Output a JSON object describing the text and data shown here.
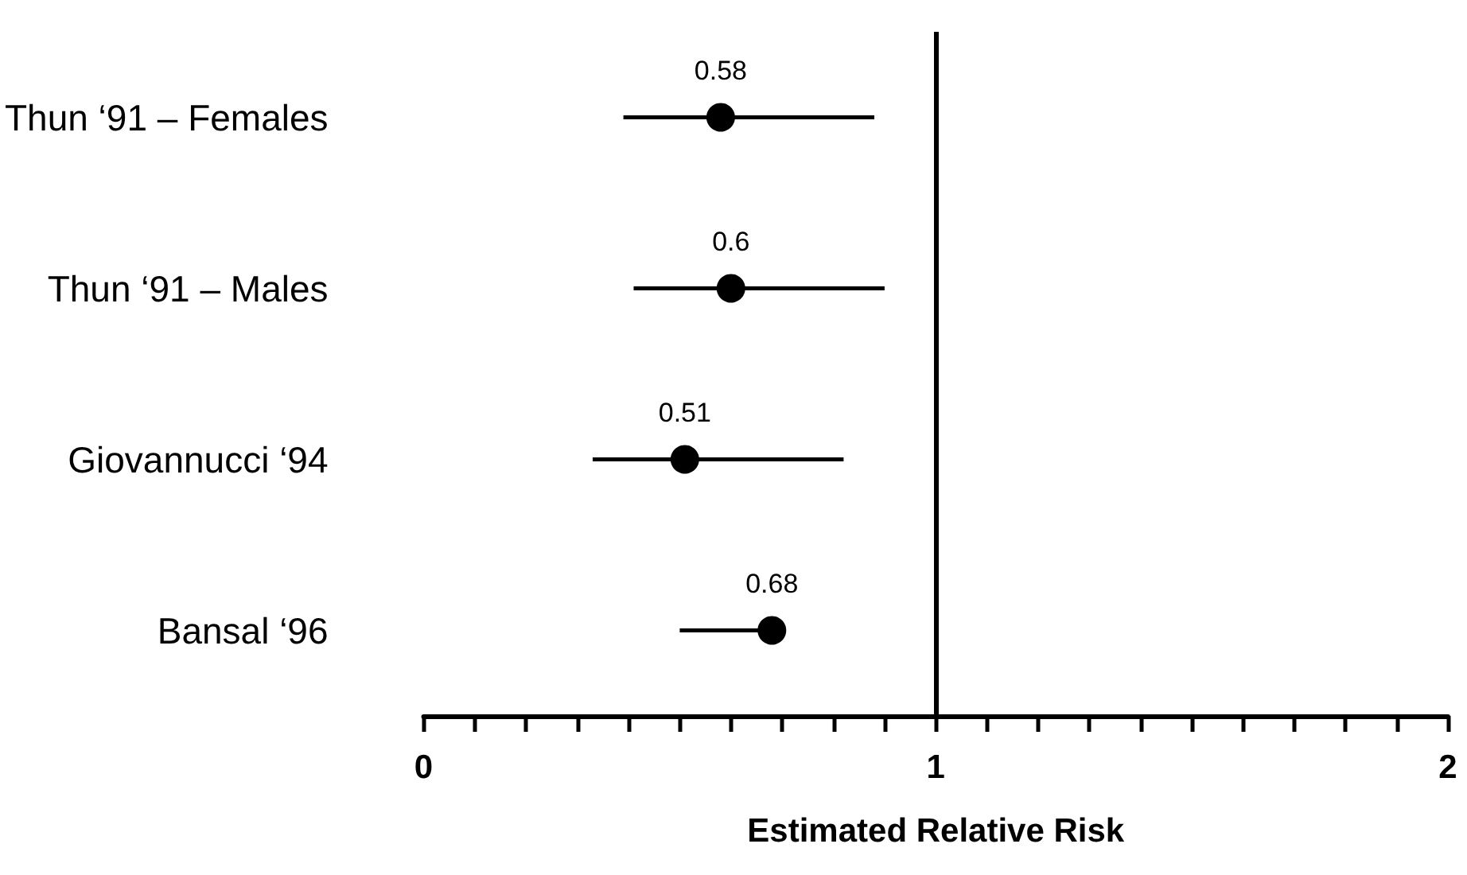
{
  "chart_data": {
    "type": "scatter",
    "orientation": "horizontal",
    "categories": [
      "Thun ‘91 – Females",
      "Thun ‘91 – Males",
      "Giovannucci ‘94",
      "Bansal ‘96"
    ],
    "values": [
      0.58,
      0.6,
      0.51,
      0.68
    ],
    "errors": [
      [
        0.39,
        0.88
      ],
      [
        0.41,
        0.9
      ],
      [
        0.33,
        0.82
      ],
      [
        0.5,
        0.68
      ]
    ],
    "color": "#000000",
    "marker": "circle",
    "data_labels": true,
    "xlabel": "Estimated Relative Risk",
    "xlim": [
      0,
      2
    ],
    "xticks": [
      0,
      {
        "value": 0.1,
        "label": null
      },
      {
        "value": 0.2,
        "label": null
      },
      {
        "value": 0.3,
        "label": null
      },
      {
        "value": 0.4,
        "label": null
      },
      {
        "value": 0.5,
        "label": null
      },
      {
        "value": 0.6,
        "label": null
      },
      {
        "value": 0.7,
        "label": null
      },
      {
        "value": 0.8,
        "label": null
      },
      {
        "value": 0.9,
        "label": null
      },
      1,
      {
        "value": 1.1,
        "label": null
      },
      {
        "value": 1.2,
        "label": null
      },
      {
        "value": 1.3,
        "label": null
      },
      {
        "value": 1.4,
        "label": null
      },
      {
        "value": 1.5,
        "label": null
      },
      {
        "value": 1.6,
        "label": null
      },
      {
        "value": 1.7,
        "label": null
      },
      {
        "value": 1.8,
        "label": null
      },
      {
        "value": 1.9,
        "label": null
      },
      2
    ],
    "ref_lines": [
      {
        "axis": "x",
        "value": 1,
        "color": "#000000"
      }
    ],
    "grid": false
  }
}
